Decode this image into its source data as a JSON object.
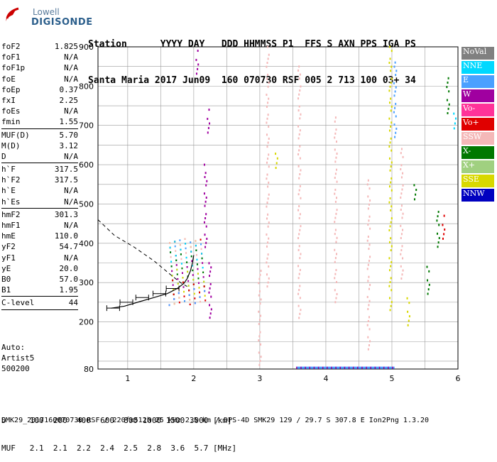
{
  "logo": {
    "line1": "Lowell",
    "line2": "DIGISONDE"
  },
  "header": {
    "line1": "Station      YYYY DAY   DDD HHMMSS P1  FFS S AXN PPS IGA PS",
    "line2": "Santa Maria 2017 Jun09  160 070730 RSF 005 2 713 100 03+ 34"
  },
  "params": [
    {
      "group": [
        {
          "k": "foF2",
          "v": "1.825"
        },
        {
          "k": "foF1",
          "v": "N/A"
        },
        {
          "k": "foF1p",
          "v": "N/A"
        },
        {
          "k": "foE",
          "v": "N/A"
        },
        {
          "k": "foEp",
          "v": "0.37"
        },
        {
          "k": "fxI",
          "v": "2.25"
        },
        {
          "k": "foEs",
          "v": "N/A"
        },
        {
          "k": "fmin",
          "v": "1.55"
        }
      ]
    },
    {
      "group": [
        {
          "k": "MUF(D)",
          "v": "5.70"
        },
        {
          "k": "M(D)",
          "v": "3.12"
        },
        {
          "k": "D",
          "v": "N/A"
        }
      ]
    },
    {
      "group": [
        {
          "k": "h`F",
          "v": "317.5"
        },
        {
          "k": "h`F2",
          "v": "317.5"
        },
        {
          "k": "h`E",
          "v": "N/A"
        },
        {
          "k": "h`Es",
          "v": "N/A"
        }
      ]
    },
    {
      "group": [
        {
          "k": "hmF2",
          "v": "301.3"
        },
        {
          "k": "hmF1",
          "v": "N/A"
        },
        {
          "k": "hmE",
          "v": "110.0"
        },
        {
          "k": "yF2",
          "v": "54.7"
        },
        {
          "k": "yF1",
          "v": "N/A"
        },
        {
          "k": "yE",
          "v": "20.0"
        },
        {
          "k": "B0",
          "v": "57.0"
        },
        {
          "k": "B1",
          "v": "1.95"
        }
      ]
    },
    {
      "group": [
        {
          "k": "C-level",
          "v": "44"
        }
      ]
    }
  ],
  "auto": {
    "line1": "Auto:",
    "line2": "Artist5",
    "line3": "500200"
  },
  "legend": [
    {
      "label": "NoVal",
      "color": "#808080"
    },
    {
      "label": "NNE",
      "color": "#00d8ff"
    },
    {
      "label": "E",
      "color": "#4aa0ff"
    },
    {
      "label": "W",
      "color": "#a000a0"
    },
    {
      "label": "Vo-",
      "color": "#ff3399"
    },
    {
      "label": "Vo+",
      "color": "#e00000"
    },
    {
      "label": "SSW",
      "color": "#f4b8b8"
    },
    {
      "label": "X-",
      "color": "#007800"
    },
    {
      "label": "X+",
      "color": "#a0d080"
    },
    {
      "label": "SSE",
      "color": "#d8d800"
    },
    {
      "label": "NNW",
      "color": "#0000c0"
    }
  ],
  "footer": {
    "line1": "D     100  200  400  600  800 1000 1500 3000 [km]",
    "line2": "MUF   2.1  2.1  2.2  2.4  2.5  2.8  3.6  5.7 [MHz]"
  },
  "bottom_line": "SMK29_2017160070730.RSF / 220fx512h 25 kHz 2.5 km / DPS-4D SMK29 129 / 29.7 S 307.8 E Ion2Png 1.3.20",
  "chart_data": {
    "type": "scatter",
    "x_ticks": [
      "1",
      "2",
      "3",
      "4",
      "5",
      "6"
    ],
    "y_ticks": [
      "80",
      "200",
      "300",
      "400",
      "500",
      "600",
      "700",
      "800",
      "900"
    ],
    "xlim": [
      0.55,
      6.0
    ],
    "ylim": [
      80,
      900
    ],
    "profile_solid": [
      [
        0.75,
        235
      ],
      [
        0.95,
        240
      ],
      [
        1.15,
        250
      ],
      [
        1.4,
        262
      ],
      [
        1.6,
        272
      ],
      [
        1.75,
        285
      ],
      [
        1.85,
        298
      ],
      [
        1.9,
        310
      ],
      [
        1.95,
        330
      ],
      [
        1.98,
        350
      ],
      [
        2.0,
        370
      ]
    ],
    "profile_dashed": [
      [
        0.55,
        460
      ],
      [
        0.8,
        420
      ],
      [
        1.1,
        390
      ],
      [
        1.4,
        355
      ],
      [
        1.65,
        320
      ],
      [
        1.8,
        300
      ],
      [
        1.9,
        290
      ]
    ],
    "trace_bars": [
      [
        0.78,
        235
      ],
      [
        0.98,
        250
      ],
      [
        1.22,
        262
      ],
      [
        1.48,
        272
      ],
      [
        1.68,
        285
      ]
    ],
    "scatter_clusters": [
      {
        "color": "#a000a0",
        "x": 2.18,
        "y0": 380,
        "y1": 600
      },
      {
        "color": "#a000a0",
        "x": 2.25,
        "y0": 200,
        "y1": 360
      },
      {
        "color": "#a000a0",
        "x": 2.22,
        "y0": 670,
        "y1": 740
      },
      {
        "color": "#a000a0",
        "x": 2.05,
        "y0": 820,
        "y1": 890
      },
      {
        "color": "#f4b8b8",
        "x": 3.0,
        "y0": 80,
        "y1": 330
      },
      {
        "color": "#f4b8b8",
        "x": 3.12,
        "y0": 280,
        "y1": 900
      },
      {
        "color": "#f4b8b8",
        "x": 3.6,
        "y0": 200,
        "y1": 860
      },
      {
        "color": "#f4b8b8",
        "x": 4.15,
        "y0": 240,
        "y1": 720
      },
      {
        "color": "#f4b8b8",
        "x": 4.65,
        "y0": 120,
        "y1": 560
      },
      {
        "color": "#f4b8b8",
        "x": 5.15,
        "y0": 300,
        "y1": 640
      },
      {
        "color": "#d8d800",
        "x": 4.98,
        "y0": 220,
        "y1": 900
      },
      {
        "color": "#d8d800",
        "x": 3.25,
        "y0": 580,
        "y1": 640
      },
      {
        "color": "#d8d800",
        "x": 5.25,
        "y0": 180,
        "y1": 260
      },
      {
        "color": "#007800",
        "x": 5.55,
        "y0": 260,
        "y1": 340
      },
      {
        "color": "#007800",
        "x": 5.7,
        "y0": 380,
        "y1": 480
      },
      {
        "color": "#007800",
        "x": 5.85,
        "y0": 720,
        "y1": 820
      },
      {
        "color": "#007800",
        "x": 5.35,
        "y0": 500,
        "y1": 560
      },
      {
        "color": "#4aa0ff",
        "x": 5.05,
        "y0": 660,
        "y1": 860
      },
      {
        "color": "#00d8ff",
        "x": 5.95,
        "y0": 680,
        "y1": 730
      },
      {
        "color": "#e00000",
        "x": 5.78,
        "y0": 400,
        "y1": 470
      }
    ]
  }
}
